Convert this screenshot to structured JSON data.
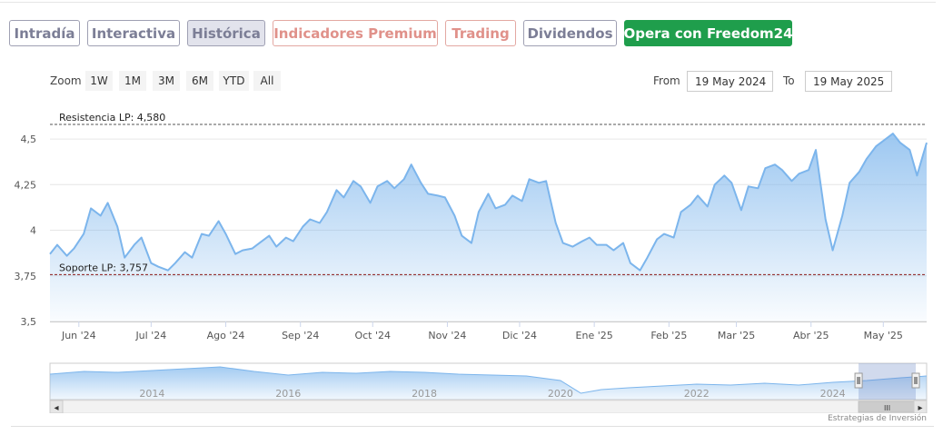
{
  "tabs": [
    {
      "label": "Intradía",
      "kind": "normal"
    },
    {
      "label": "Interactiva",
      "kind": "normal"
    },
    {
      "label": "Histórica",
      "kind": "active"
    },
    {
      "label": "Indicadores Premium",
      "kind": "premium"
    },
    {
      "label": "Trading",
      "kind": "premium"
    },
    {
      "label": "Dividendos",
      "kind": "normal"
    },
    {
      "label": "Opera con Freedom24",
      "kind": "cta"
    }
  ],
  "zoom": {
    "label": "Zoom",
    "options": [
      "1W",
      "1M",
      "3M",
      "6M",
      "YTD",
      "All"
    ]
  },
  "range": {
    "from_label": "From",
    "from_value": "19 May 2024",
    "to_label": "To",
    "to_value": "19 May 2025"
  },
  "colors": {
    "line": "#7cb5ec",
    "resistance": "#555555",
    "support": "#8b1a1a",
    "tab_border": "#9fa0b3",
    "premium": "#e0918a",
    "cta": "#1f9e4c"
  },
  "chart_data": {
    "type": "area",
    "y_tick_labels": [
      "4,5",
      "4,25",
      "4",
      "3,75",
      "3,5"
    ],
    "y_ticks": [
      4.5,
      4.25,
      4.0,
      3.75,
      3.5
    ],
    "ylim": [
      3.5,
      4.59
    ],
    "x_tick_labels": [
      "Jun '24",
      "Jul '24",
      "Ago '24",
      "Sep '24",
      "Oct '24",
      "Nov '24",
      "Dic '24",
      "Ene '25",
      "Feb '25",
      "Mar '25",
      "Abr '25",
      "May '25"
    ],
    "x_tick_dates": [
      "2024-06-01",
      "2024-07-01",
      "2024-08-01",
      "2024-09-01",
      "2024-10-01",
      "2024-11-01",
      "2024-12-01",
      "2025-01-01",
      "2025-02-01",
      "2025-03-01",
      "2025-04-01",
      "2025-05-01"
    ],
    "x_range": [
      "2024-05-20",
      "2025-05-19"
    ],
    "resistance": {
      "label": "Resistencia LP: 4,580",
      "value": 4.58
    },
    "support": {
      "label": "Soporte LP: 3,757",
      "value": 3.757
    },
    "grid": true,
    "series": [
      {
        "x": [
          "2024-05-20",
          "2024-05-23",
          "2024-05-27",
          "2024-05-30",
          "2024-06-03",
          "2024-06-06",
          "2024-06-10",
          "2024-06-13",
          "2024-06-17",
          "2024-06-20",
          "2024-06-24",
          "2024-06-27",
          "2024-07-01",
          "2024-07-04",
          "2024-07-08",
          "2024-07-11",
          "2024-07-15",
          "2024-07-18",
          "2024-07-22",
          "2024-07-25",
          "2024-07-29",
          "2024-08-01",
          "2024-08-05",
          "2024-08-08",
          "2024-08-12",
          "2024-08-15",
          "2024-08-19",
          "2024-08-22",
          "2024-08-26",
          "2024-08-29",
          "2024-09-02",
          "2024-09-05",
          "2024-09-09",
          "2024-09-12",
          "2024-09-16",
          "2024-09-19",
          "2024-09-23",
          "2024-09-26",
          "2024-09-30",
          "2024-10-03",
          "2024-10-07",
          "2024-10-10",
          "2024-10-14",
          "2024-10-17",
          "2024-10-21",
          "2024-10-24",
          "2024-10-28",
          "2024-10-31",
          "2024-11-04",
          "2024-11-07",
          "2024-11-11",
          "2024-11-14",
          "2024-11-18",
          "2024-11-21",
          "2024-11-25",
          "2024-11-28",
          "2024-12-02",
          "2024-12-05",
          "2024-12-09",
          "2024-12-12",
          "2024-12-16",
          "2024-12-19",
          "2024-12-23",
          "2024-12-27",
          "2024-12-30",
          "2025-01-02",
          "2025-01-06",
          "2025-01-09",
          "2025-01-13",
          "2025-01-16",
          "2025-01-20",
          "2025-01-23",
          "2025-01-27",
          "2025-01-30",
          "2025-02-03",
          "2025-02-06",
          "2025-02-10",
          "2025-02-13",
          "2025-02-17",
          "2025-02-20",
          "2025-02-24",
          "2025-02-27",
          "2025-03-03",
          "2025-03-06",
          "2025-03-10",
          "2025-03-13",
          "2025-03-17",
          "2025-03-20",
          "2025-03-24",
          "2025-03-27",
          "2025-03-31",
          "2025-04-03",
          "2025-04-07",
          "2025-04-10",
          "2025-04-14",
          "2025-04-17",
          "2025-04-21",
          "2025-04-24",
          "2025-04-28",
          "2025-05-01",
          "2025-05-05",
          "2025-05-08",
          "2025-05-12",
          "2025-05-15",
          "2025-05-19"
        ],
        "values": [
          3.87,
          3.92,
          3.86,
          3.9,
          3.98,
          4.12,
          4.08,
          4.15,
          4.02,
          3.85,
          3.92,
          3.96,
          3.82,
          3.8,
          3.78,
          3.82,
          3.88,
          3.85,
          3.98,
          3.97,
          4.05,
          3.98,
          3.87,
          3.89,
          3.9,
          3.93,
          3.97,
          3.91,
          3.96,
          3.94,
          4.02,
          4.06,
          4.04,
          4.1,
          4.22,
          4.18,
          4.27,
          4.24,
          4.15,
          4.24,
          4.27,
          4.23,
          4.28,
          4.36,
          4.26,
          4.2,
          4.19,
          4.18,
          4.08,
          3.97,
          3.93,
          4.1,
          4.2,
          4.12,
          4.14,
          4.19,
          4.16,
          4.28,
          4.26,
          4.27,
          4.04,
          3.93,
          3.91,
          3.94,
          3.96,
          3.92,
          3.92,
          3.89,
          3.93,
          3.82,
          3.78,
          3.85,
          3.95,
          3.98,
          3.96,
          4.1,
          4.14,
          4.19,
          4.13,
          4.25,
          4.3,
          4.26,
          4.11,
          4.24,
          4.23,
          4.34,
          4.36,
          4.33,
          4.27,
          4.31,
          4.33,
          4.44,
          4.06,
          3.89,
          4.08,
          4.26,
          4.32,
          4.39,
          4.46,
          4.49,
          4.53,
          4.48,
          4.44,
          4.3,
          4.48
        ]
      }
    ]
  },
  "navigator": {
    "year_labels": [
      "2014",
      "2016",
      "2018",
      "2020",
      "2022",
      "2024"
    ],
    "year_positions": [
      2014,
      2016,
      2018,
      2020,
      2022,
      2024
    ],
    "year_range": [
      2012.5,
      2025.38
    ],
    "window": [
      2024.38,
      2025.38
    ],
    "series_years": [
      2012.5,
      2013,
      2013.5,
      2014,
      2014.5,
      2015,
      2015.5,
      2016,
      2016.5,
      2017,
      2017.5,
      2018,
      2018.5,
      2019,
      2019.5,
      2020,
      2020.3,
      2020.6,
      2021,
      2021.5,
      2022,
      2022.5,
      2023,
      2023.5,
      2024,
      2024.5,
      2025,
      2025.38
    ],
    "series_values": [
      4.3,
      4.6,
      4.5,
      4.7,
      4.9,
      5.1,
      4.6,
      4.2,
      4.5,
      4.4,
      4.6,
      4.5,
      4.3,
      4.2,
      4.1,
      3.6,
      2.2,
      2.6,
      2.8,
      3.0,
      3.2,
      3.1,
      3.3,
      3.1,
      3.4,
      3.6,
      3.9,
      4.1
    ],
    "scroll_thumb_glyph": "III",
    "left_arrow": "◂",
    "right_arrow": "▸"
  },
  "credit": "Estrategias de Inversión"
}
